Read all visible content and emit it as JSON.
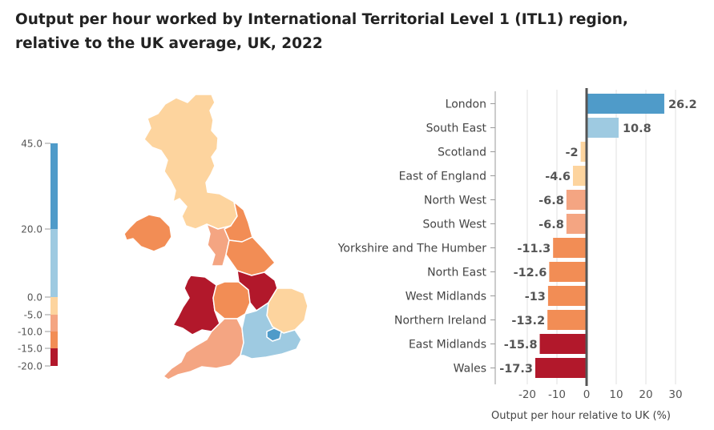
{
  "title": {
    "line1": "Output per hour worked by International Territorial Level 1 (ITL1) region,",
    "line2": "relative to the UK average, UK, 2022"
  },
  "colors": {
    "band_45_20": "#4f9bc9",
    "band_20_0": "#9ecae1",
    "band_0_m5": "#fdd49e",
    "band_m5_m10": "#f4a582",
    "band_m10_m15": "#f28d55",
    "band_m15_m20": "#b2182b"
  },
  "legend": {
    "ticks": [
      {
        "label": "45.0",
        "value": 45
      },
      {
        "label": "20.0",
        "value": 20
      },
      {
        "label": "0.0",
        "value": 0
      },
      {
        "label": "-5.0",
        "value": -5
      },
      {
        "label": "-10.0",
        "value": -10
      },
      {
        "label": "-15.0",
        "value": -15
      },
      {
        "label": "-20.0",
        "value": -20
      }
    ]
  },
  "map": {
    "regions": [
      {
        "name": "Scotland",
        "value": -2
      },
      {
        "name": "North East",
        "value": -12.6
      },
      {
        "name": "North West",
        "value": -6.8
      },
      {
        "name": "Yorkshire and The Humber",
        "value": -11.3
      },
      {
        "name": "Northern Ireland",
        "value": -13.2
      },
      {
        "name": "Wales",
        "value": -17.3
      },
      {
        "name": "West Midlands",
        "value": -13
      },
      {
        "name": "East Midlands",
        "value": -15.8
      },
      {
        "name": "East of England",
        "value": -4.6
      },
      {
        "name": "South West",
        "value": -6.8
      },
      {
        "name": "South East",
        "value": 10.8
      },
      {
        "name": "London",
        "value": 26.2
      }
    ]
  },
  "chart_data": {
    "type": "bar",
    "orientation": "horizontal",
    "categories": [
      "London",
      "South East",
      "Scotland",
      "East of England",
      "North West",
      "South West",
      "Yorkshire and The Humber",
      "North East",
      "West Midlands",
      "Northern Ireland",
      "East Midlands",
      "Wales"
    ],
    "values": [
      26.2,
      10.8,
      -2,
      -4.6,
      -6.8,
      -6.8,
      -11.3,
      -12.6,
      -13,
      -13.2,
      -15.8,
      -17.3
    ],
    "value_labels": [
      "26.2",
      "10.8",
      "-2",
      "-4.6",
      "-6.8",
      "-6.8",
      "-11.3",
      "-12.6",
      "-13",
      "-13.2",
      "-15.8",
      "-17.3"
    ],
    "xlabel": "Output per hour relative to UK (%)",
    "ylabel": "",
    "xlim": [
      -30,
      35
    ],
    "xticks": [
      -20,
      -10,
      0,
      10,
      20,
      30
    ],
    "xtick_labels": [
      "-20",
      "-10",
      "0",
      "10",
      "20",
      "30"
    ],
    "grid": true
  }
}
